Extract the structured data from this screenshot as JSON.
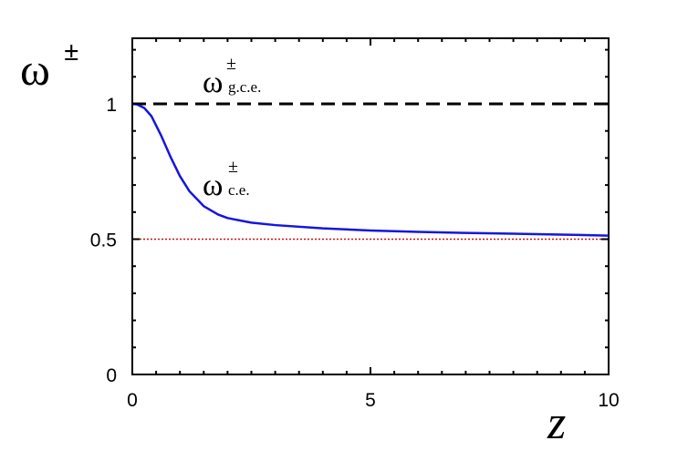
{
  "chart_data": {
    "type": "line",
    "xlim": [
      0,
      10
    ],
    "ylim": [
      0,
      1.25
    ],
    "x_ticks": [
      0,
      5,
      10
    ],
    "y_ticks": [
      0,
      0.5,
      1
    ],
    "x_tick_labels": [
      "0",
      "5",
      "10"
    ],
    "y_tick_labels": [
      "0",
      "0.5",
      "1"
    ],
    "xlabel": "z",
    "ylabel": {
      "base": "ω",
      "sup": "±"
    },
    "grid": false,
    "series": [
      {
        "style": "solid",
        "color": "#1515e0",
        "x": [
          0,
          0.1,
          0.25,
          0.4,
          0.6,
          0.8,
          1.0,
          1.2,
          1.5,
          1.8,
          2.0,
          2.5,
          3.0,
          4.0,
          5.0,
          6.0,
          7.0,
          8.0,
          9.0,
          10.0
        ],
        "y": [
          1.0,
          0.998,
          0.985,
          0.955,
          0.885,
          0.805,
          0.733,
          0.677,
          0.622,
          0.591,
          0.578,
          0.561,
          0.552,
          0.54,
          0.532,
          0.527,
          0.523,
          0.52,
          0.517,
          0.513
        ]
      },
      {
        "style": "dashed",
        "color": "#000000",
        "x": [
          0,
          10
        ],
        "y": [
          1,
          1
        ]
      },
      {
        "style": "dotted",
        "color": "#d01010",
        "x": [
          0,
          10
        ],
        "y": [
          0.5,
          0.5
        ]
      }
    ],
    "annotations": [
      {
        "base": "ω",
        "sup": "±",
        "sub": "g.c.e."
      },
      {
        "base": "ω",
        "sup": "±",
        "sub": "c.e."
      }
    ]
  }
}
